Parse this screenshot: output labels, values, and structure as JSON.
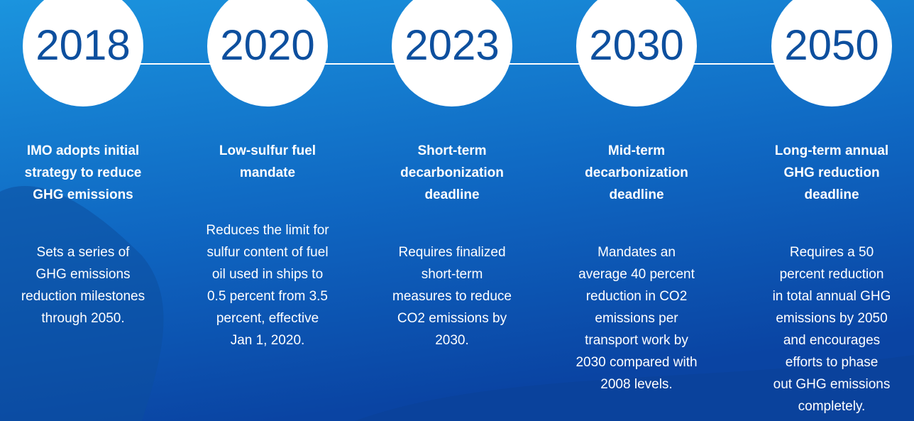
{
  "milestones": [
    {
      "year": "2018",
      "title_lines": [
        "IMO adopts initial",
        "strategy to reduce",
        "GHG emissions"
      ],
      "body_lines": [
        "Sets a series of",
        "GHG emissions",
        "reduction milestones",
        "through 2050."
      ]
    },
    {
      "year": "2020",
      "title_lines": [
        "Low-sulfur fuel",
        "mandate"
      ],
      "body_lines": [
        "Reduces the limit for",
        "sulfur content of fuel",
        "oil used in ships to",
        "0.5 percent from 3.5",
        "percent, effective",
        "Jan 1, 2020."
      ]
    },
    {
      "year": "2023",
      "title_lines": [
        "Short-term",
        "decarbonization",
        "deadline"
      ],
      "body_lines": [
        "Requires finalized",
        "short-term",
        "measures to reduce",
        "CO2 emissions by",
        "2030."
      ]
    },
    {
      "year": "2030",
      "title_lines": [
        "Mid-term",
        "decarbonization",
        "deadline"
      ],
      "body_lines": [
        "Mandates an",
        "average 40 percent",
        "reduction in CO2",
        "emissions per",
        "transport work by",
        "2030 compared with",
        "2008 levels."
      ]
    },
    {
      "year": "2050",
      "title_lines": [
        "Long-term annual",
        "GHG reduction",
        "deadline"
      ],
      "body_lines": [
        "Requires a 50",
        "percent reduction",
        "in total annual GHG",
        "emissions by 2050",
        "and encourages",
        "efforts to phase",
        "out GHG emissions",
        "completely."
      ]
    }
  ]
}
